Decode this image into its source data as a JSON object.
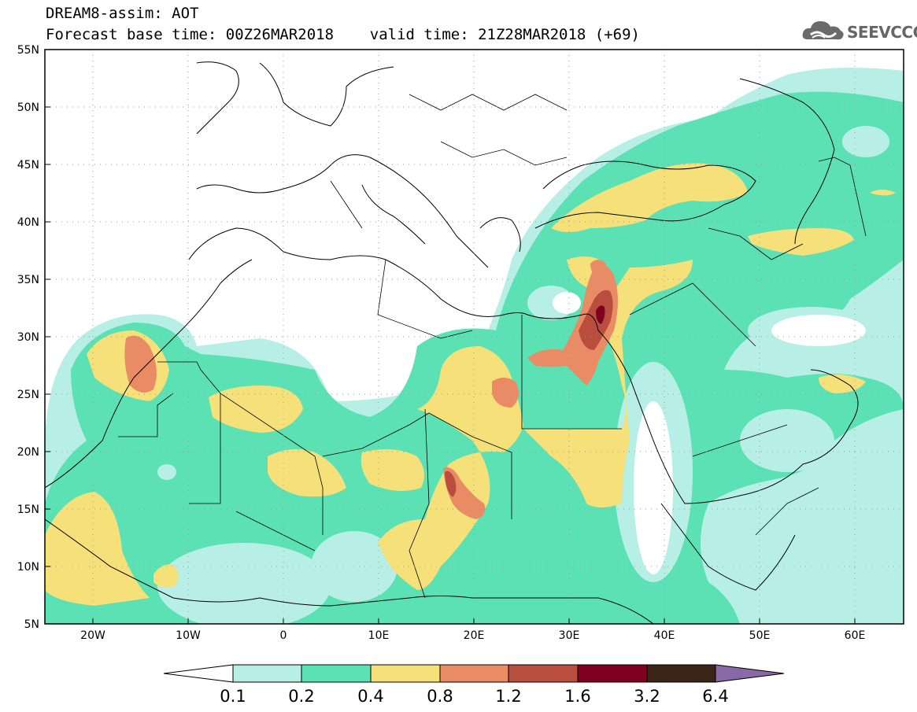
{
  "title": {
    "line1": "DREAM8-assim: AOT",
    "line2": "Forecast base time: 00Z26MAR2018    valid time: 21Z28MAR2018 (+69)"
  },
  "logo": {
    "text": "SEEVCCC",
    "icon": "cloud-icon",
    "color": "#666666"
  },
  "map": {
    "lat_labels": [
      "55N",
      "50N",
      "45N",
      "40N",
      "35N",
      "30N",
      "25N",
      "20N",
      "15N",
      "10N",
      "5N"
    ],
    "lon_labels": [
      "20W",
      "10W",
      "0",
      "10E",
      "20E",
      "30E",
      "40E",
      "50E",
      "60E"
    ],
    "lat_range": [
      5,
      55
    ],
    "lon_range": [
      -25,
      65
    ],
    "grid": "dotted"
  },
  "colorbar": {
    "labels": [
      "0.1",
      "0.2",
      "0.4",
      "0.8",
      "1.2",
      "1.6",
      "3.2",
      "6.4"
    ],
    "colors": [
      "#ffffff",
      "#b7efe6",
      "#5ce1b5",
      "#f5e07a",
      "#e98c66",
      "#b94d3e",
      "#800020",
      "#3b2418",
      "#8a6aa6"
    ]
  }
}
